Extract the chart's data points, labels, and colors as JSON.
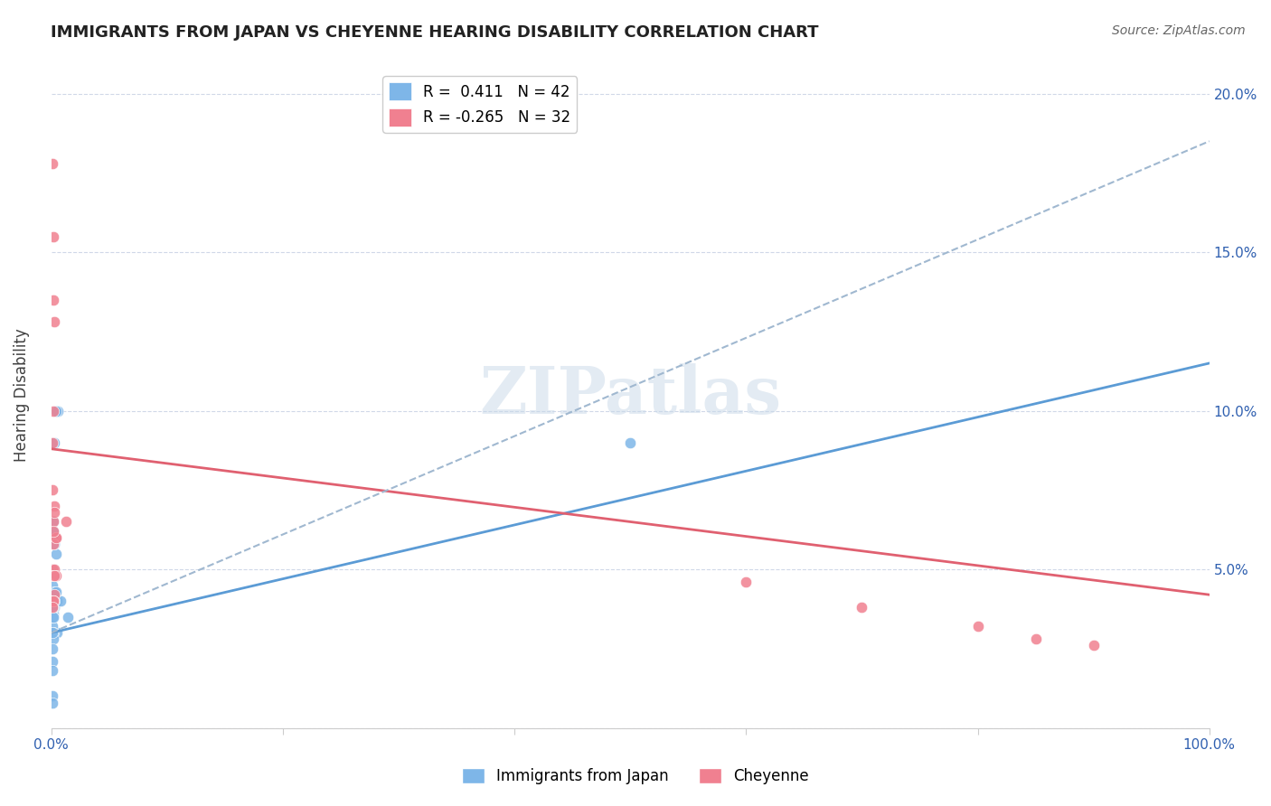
{
  "title": "IMMIGRANTS FROM JAPAN VS CHEYENNE HEARING DISABILITY CORRELATION CHART",
  "source": "Source: ZipAtlas.com",
  "ylabel": "Hearing Disability",
  "x_min": 0.0,
  "x_max": 1.0,
  "y_min": 0.0,
  "y_max": 0.21,
  "x_ticks": [
    0.0,
    0.2,
    0.4,
    0.6,
    0.8,
    1.0
  ],
  "x_tick_labels": [
    "0.0%",
    "",
    "",
    "",
    "",
    "100.0%"
  ],
  "y_ticks": [
    0.0,
    0.05,
    0.1,
    0.15,
    0.2
  ],
  "y_tick_labels": [
    "",
    "5.0%",
    "10.0%",
    "15.0%",
    "20.0%"
  ],
  "blue_color": "#7eb6e8",
  "pink_color": "#f08090",
  "blue_line_color": "#5b9bd5",
  "pink_line_color": "#e06070",
  "dashed_line_color": "#a0b8d0",
  "legend_r_blue": "R =  0.411",
  "legend_n_blue": "N = 42",
  "legend_r_pink": "R = -0.265",
  "legend_n_pink": "N = 32",
  "legend_label_blue": "Immigrants from Japan",
  "legend_label_pink": "Cheyenne",
  "watermark": "ZIPatlas",
  "blue_scatter_x": [
    0.002,
    0.005,
    0.001,
    0.001,
    0.003,
    0.002,
    0.003,
    0.004,
    0.002,
    0.001,
    0.001,
    0.006,
    0.002,
    0.003,
    0.002,
    0.004,
    0.003,
    0.005,
    0.002,
    0.001,
    0.003,
    0.002,
    0.001,
    0.001,
    0.008,
    0.004,
    0.001,
    0.002,
    0.001,
    0.003,
    0.002,
    0.014,
    0.001,
    0.001,
    0.001,
    0.001,
    0.001,
    0.001,
    0.003,
    0.5,
    0.002,
    0.001
  ],
  "blue_scatter_y": [
    0.036,
    0.03,
    0.045,
    0.04,
    0.048,
    0.035,
    0.038,
    0.055,
    0.042,
    0.06,
    0.041,
    0.1,
    0.065,
    0.058,
    0.05,
    0.1,
    0.043,
    0.04,
    0.062,
    0.032,
    0.042,
    0.038,
    0.01,
    0.038,
    0.04,
    0.043,
    0.035,
    0.03,
    0.021,
    0.04,
    0.028,
    0.035,
    0.025,
    0.018,
    0.03,
    0.04,
    0.035,
    0.038,
    0.09,
    0.09,
    0.035,
    0.008
  ],
  "pink_scatter_x": [
    0.001,
    0.002,
    0.003,
    0.004,
    0.001,
    0.002,
    0.003,
    0.001,
    0.002,
    0.001,
    0.003,
    0.002,
    0.001,
    0.004,
    0.003,
    0.002,
    0.001,
    0.003,
    0.013,
    0.003,
    0.004,
    0.002,
    0.001,
    0.002,
    0.6,
    0.7,
    0.8,
    0.85,
    0.9,
    0.003,
    0.002,
    0.001
  ],
  "pink_scatter_y": [
    0.09,
    0.135,
    0.128,
    0.06,
    0.05,
    0.1,
    0.042,
    0.075,
    0.065,
    0.04,
    0.05,
    0.058,
    0.048,
    0.06,
    0.048,
    0.062,
    0.04,
    0.07,
    0.065,
    0.068,
    0.048,
    0.04,
    0.178,
    0.155,
    0.046,
    0.038,
    0.032,
    0.028,
    0.026,
    0.048,
    0.04,
    0.038
  ],
  "blue_line_x": [
    0.0,
    1.0
  ],
  "blue_line_y": [
    0.03,
    0.115
  ],
  "pink_line_x": [
    0.0,
    1.0
  ],
  "pink_line_y": [
    0.088,
    0.042
  ],
  "dashed_line_x": [
    0.0,
    1.0
  ],
  "dashed_line_y": [
    0.03,
    0.185
  ]
}
